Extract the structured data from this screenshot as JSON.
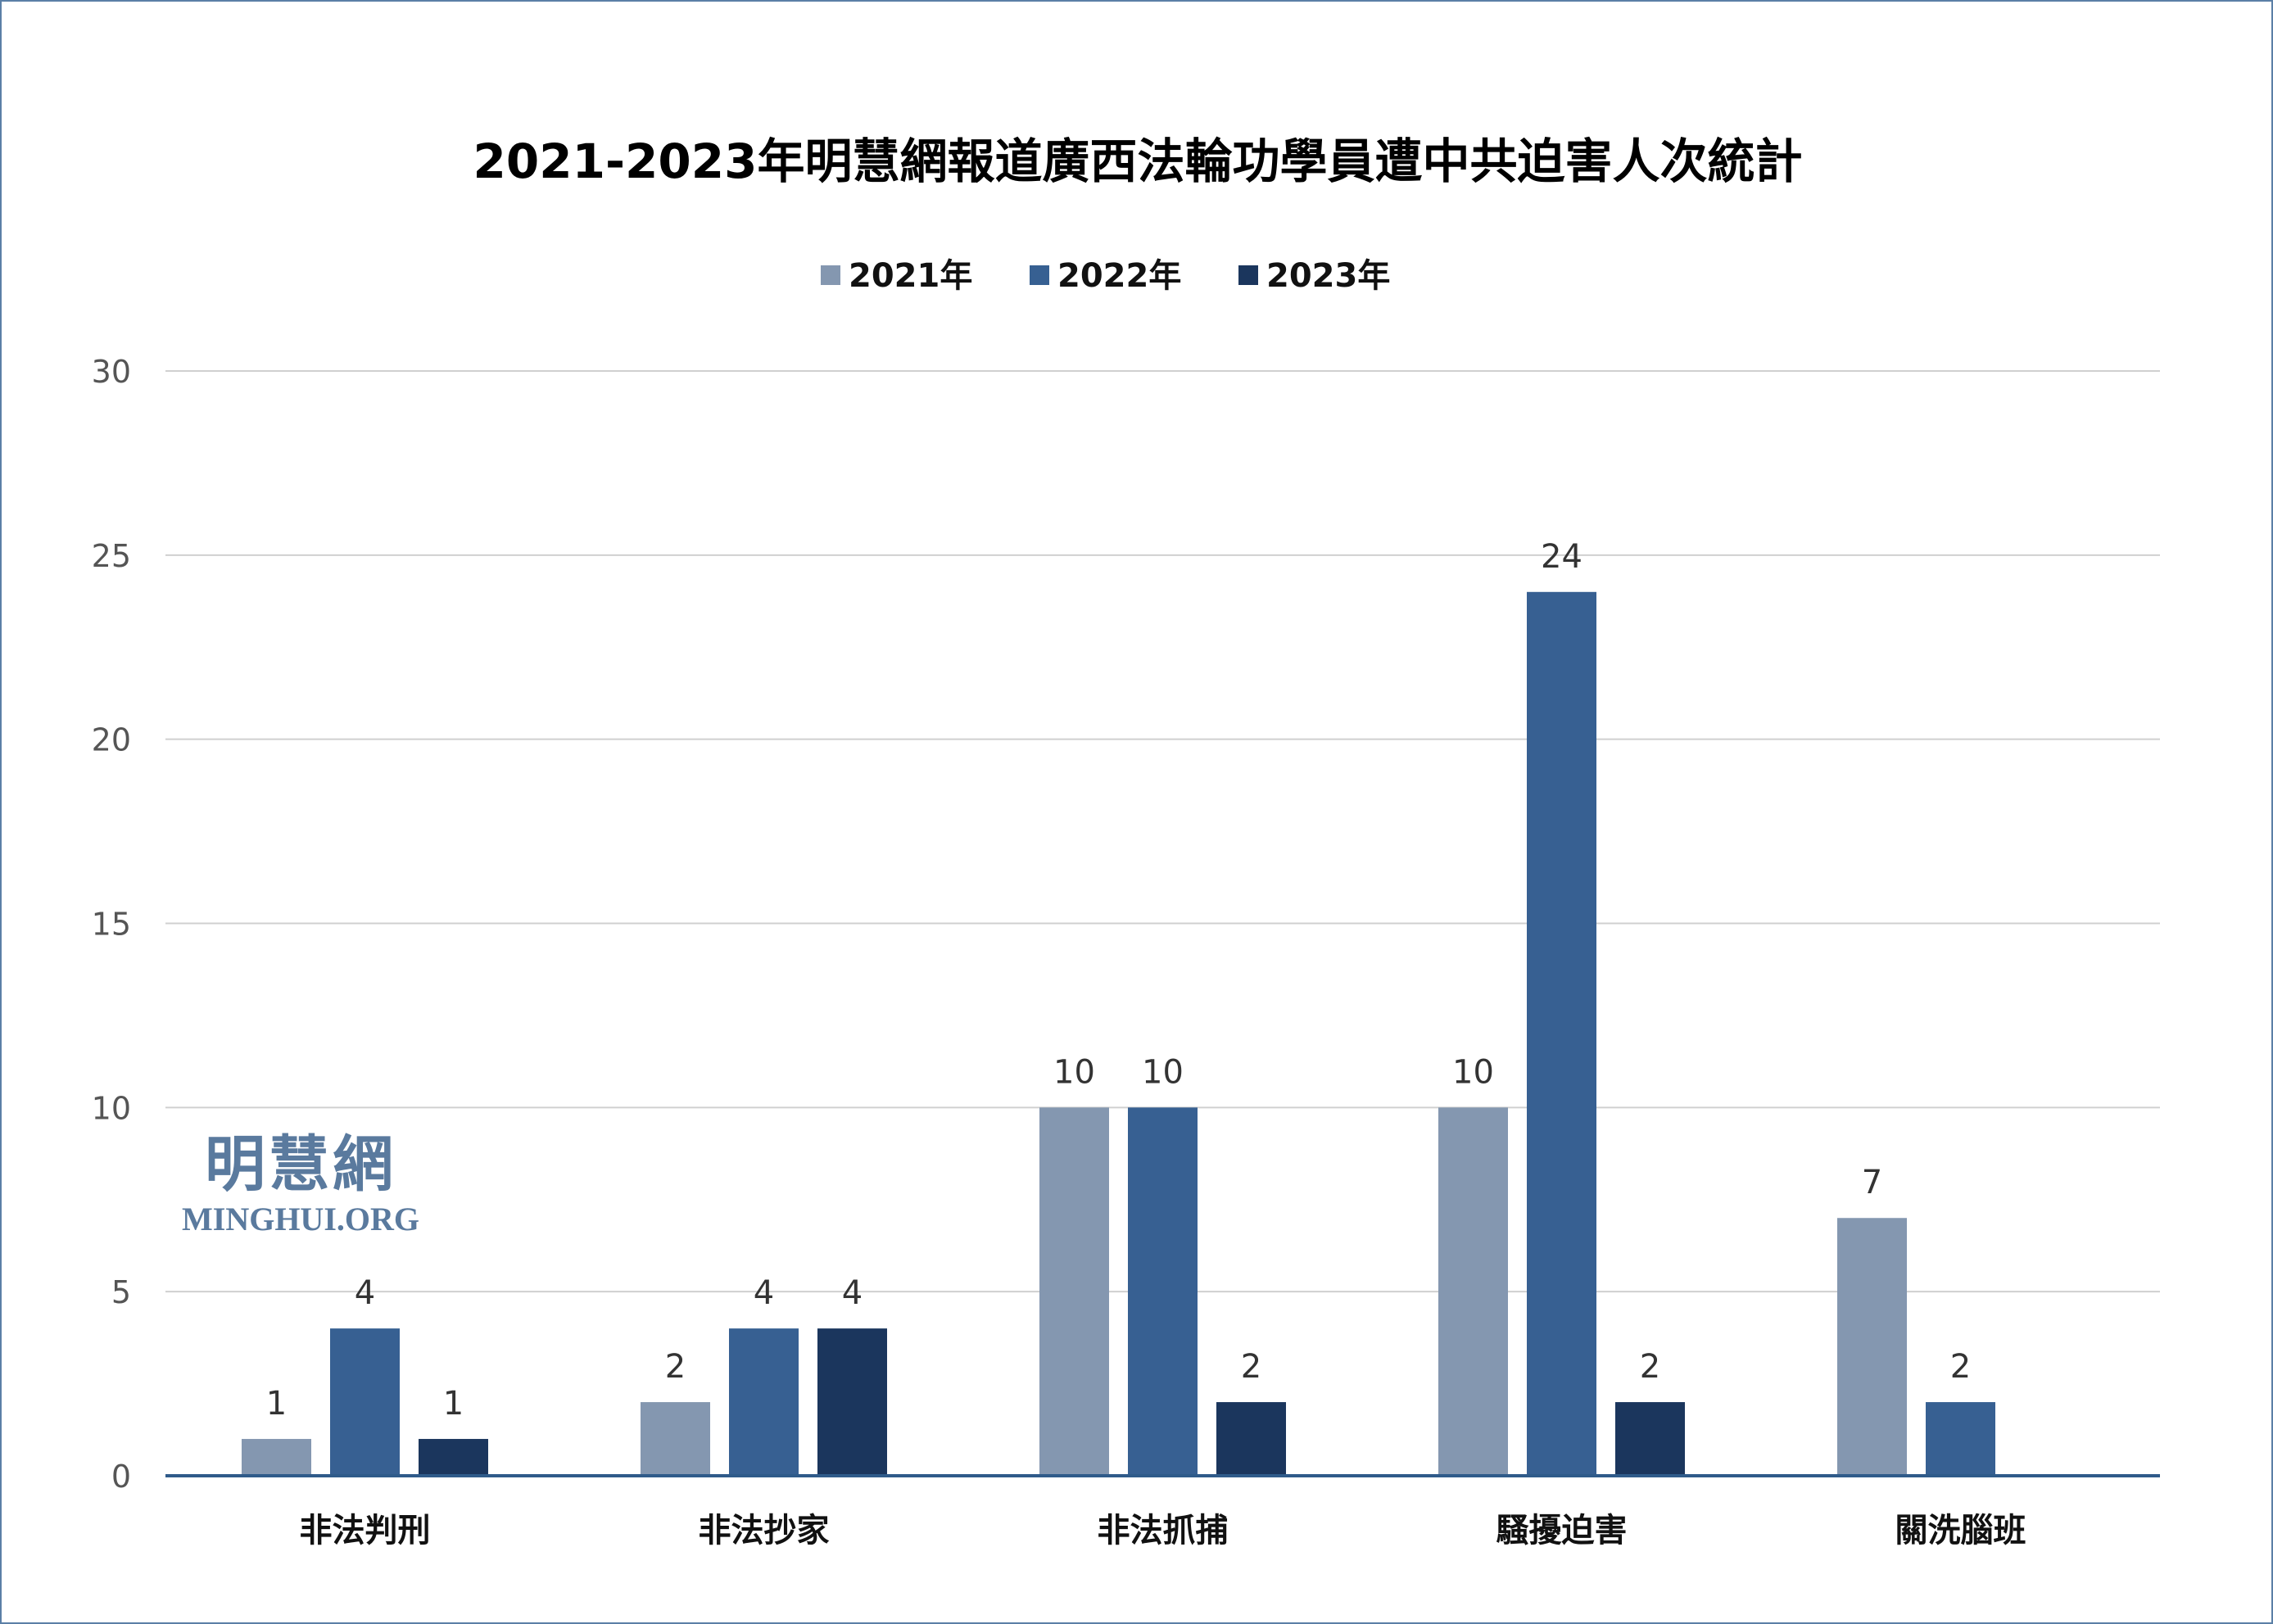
{
  "chart_data": {
    "type": "bar",
    "title": "2021-2023年明慧網報道廣西法輪功學員遭中共迫害人次統計",
    "categories": [
      "非法判刑",
      "非法抄家",
      "非法抓捕",
      "騷擾迫害",
      "關洗腦班"
    ],
    "series": [
      {
        "name": "2021年",
        "color": "#8497b0",
        "values": [
          1,
          2,
          10,
          10,
          7
        ]
      },
      {
        "name": "2022年",
        "color": "#376092",
        "values": [
          4,
          4,
          10,
          24,
          2
        ]
      },
      {
        "name": "2023年",
        "color": "#1b365d",
        "values": [
          1,
          4,
          2,
          2,
          null
        ]
      }
    ],
    "xlabel": "",
    "ylabel": "",
    "ylim": [
      0,
      30
    ],
    "yticks": [
      0,
      5,
      10,
      15,
      20,
      25,
      30
    ],
    "grid": true,
    "legend_position": "top-center"
  },
  "watermark": {
    "chinese": "明慧網",
    "english": "MINGHUI.ORG"
  }
}
